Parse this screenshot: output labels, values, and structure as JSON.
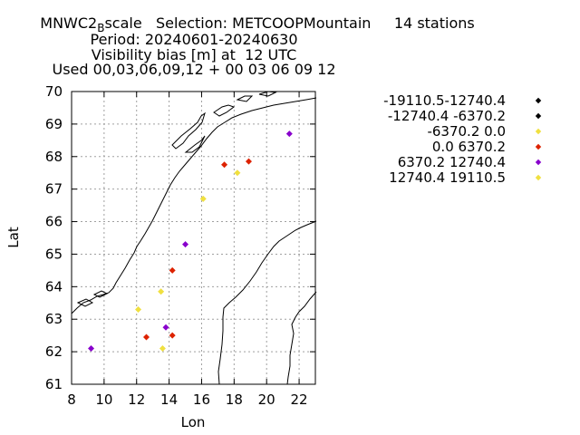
{
  "chart_data": {
    "type": "scatter",
    "title_lines": [
      "MNWC2_B scale   Selection: METCOOPMountain     14 stations",
      "Period: 20240601-20240630",
      "Visibility bias [m] at  12 UTC",
      "Used 00,03,06,09,12 + 00 03 06 09 12"
    ],
    "title_parts": {
      "prefix": "MNWC2",
      "subscript": "B",
      "rest": "scale   Selection: METCOOPMountain     14 stations"
    },
    "xlabel": "Lon",
    "ylabel": "Lat",
    "xlim": [
      8,
      23
    ],
    "ylim": [
      61,
      70
    ],
    "xticks": [
      "8",
      "10",
      "12",
      "14",
      "16",
      "18",
      "20",
      "22"
    ],
    "yticks": [
      "61",
      "62",
      "63",
      "64",
      "65",
      "66",
      "67",
      "68",
      "69",
      "70"
    ],
    "grid": true,
    "legend_position": "right",
    "series": [
      {
        "name": "-19110.5-12740.4",
        "color": "#000000",
        "points": []
      },
      {
        "name": "-12740.4 -6370.2",
        "color": "#000000",
        "points": []
      },
      {
        "name": "-6370.2 0.0",
        "color": "#f0e040",
        "points": [
          [
            16.1,
            66.7
          ],
          [
            18.2,
            67.5
          ],
          [
            13.5,
            63.85
          ],
          [
            12.1,
            63.3
          ],
          [
            13.6,
            62.1
          ]
        ]
      },
      {
        "name": "0.0 6370.2",
        "color": "#dd2200",
        "points": [
          [
            17.4,
            67.75
          ],
          [
            18.9,
            67.85
          ],
          [
            14.2,
            64.5
          ],
          [
            14.2,
            62.5
          ],
          [
            12.6,
            62.45
          ]
        ]
      },
      {
        "name": "6370.2 12740.4",
        "color": "#8800cc",
        "points": [
          [
            21.4,
            68.7
          ],
          [
            15.0,
            65.3
          ],
          [
            13.8,
            62.75
          ],
          [
            9.2,
            62.1
          ]
        ]
      },
      {
        "name": "12740.4 19110.5",
        "color": "#f0e040",
        "points": []
      }
    ]
  }
}
